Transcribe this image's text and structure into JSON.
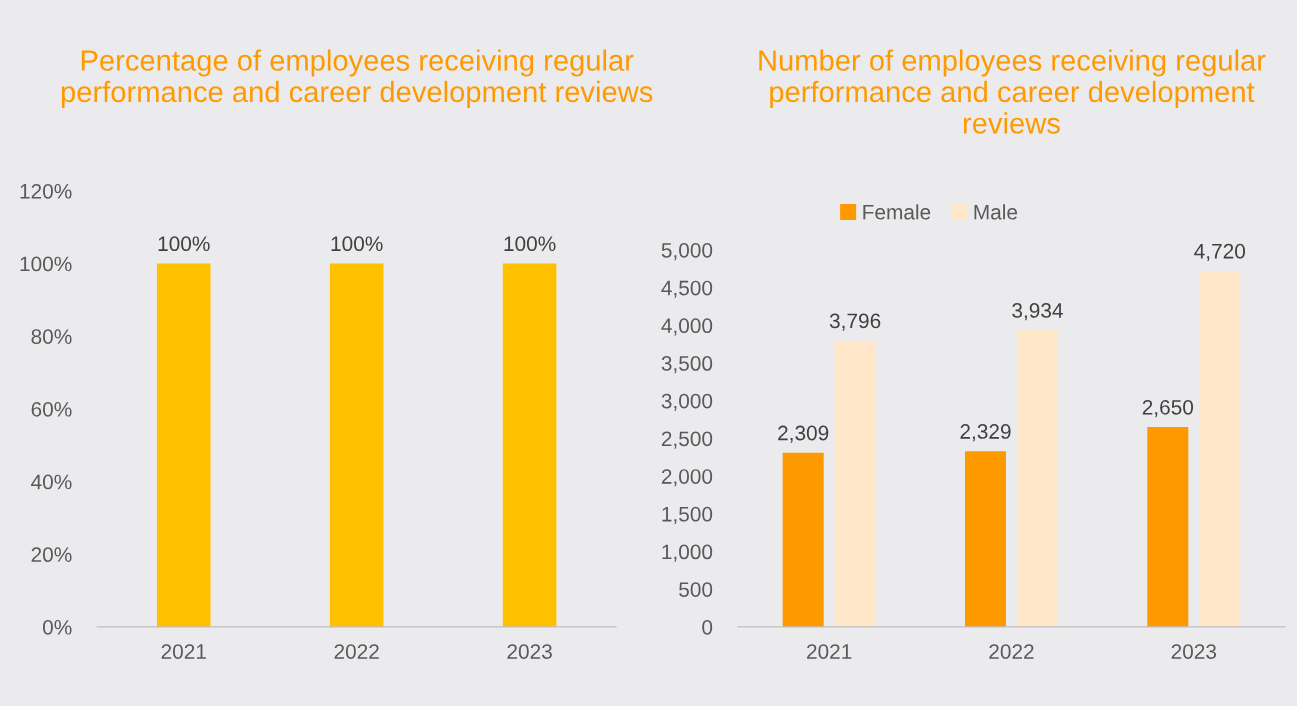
{
  "chart_data": [
    {
      "type": "bar",
      "title": "Percentage of employees receiving regular performance and career development reviews",
      "categories": [
        "2021",
        "2022",
        "2023"
      ],
      "series": [
        {
          "color": "#ffc000",
          "values": [
            100,
            100,
            100
          ],
          "value_labels": [
            "100%",
            "100%",
            "100%"
          ]
        }
      ],
      "ylim": [
        0,
        120
      ],
      "yticks": [
        {
          "value": 0,
          "label": "0%"
        },
        {
          "value": 20,
          "label": "20%"
        },
        {
          "value": 40,
          "label": "40%"
        },
        {
          "value": 60,
          "label": "60%"
        },
        {
          "value": 80,
          "label": "80%"
        },
        {
          "value": 100,
          "label": "100%"
        },
        {
          "value": 120,
          "label": "120%"
        }
      ],
      "grid": false,
      "legend": false
    },
    {
      "type": "bar",
      "title": "Number of employees receiving regular performance and career development reviews",
      "categories": [
        "2021",
        "2022",
        "2023"
      ],
      "series": [
        {
          "name": "Female",
          "color": "#ff9900",
          "values": [
            2309,
            2329,
            2650
          ],
          "value_labels": [
            "2,309",
            "2,329",
            "2,650"
          ]
        },
        {
          "name": "Male",
          "color": "#ffe6c9",
          "values": [
            3796,
            3934,
            4720
          ],
          "value_labels": [
            "3,796",
            "3,934",
            "4,720"
          ]
        }
      ],
      "ylim": [
        0,
        5000
      ],
      "yticks": [
        {
          "value": 0,
          "label": "0"
        },
        {
          "value": 500,
          "label": "500"
        },
        {
          "value": 1000,
          "label": "1,000"
        },
        {
          "value": 1500,
          "label": "1,500"
        },
        {
          "value": 2000,
          "label": "2,000"
        },
        {
          "value": 2500,
          "label": "2,500"
        },
        {
          "value": 3000,
          "label": "3,000"
        },
        {
          "value": 3500,
          "label": "3,500"
        },
        {
          "value": 4000,
          "label": "4,000"
        },
        {
          "value": 4500,
          "label": "4,500"
        },
        {
          "value": 5000,
          "label": "5,000"
        }
      ],
      "grid": false,
      "legend": "top"
    }
  ]
}
